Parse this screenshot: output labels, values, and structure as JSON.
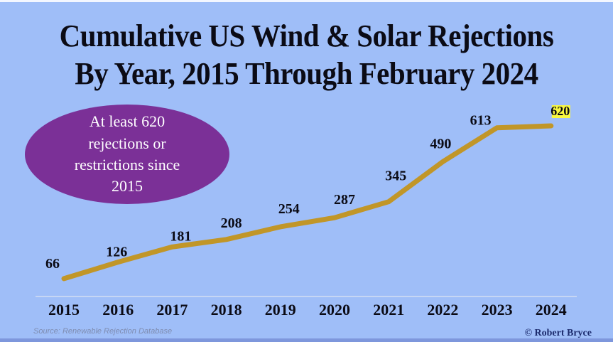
{
  "page": {
    "background_color": "#9fbef8",
    "top_strip_color": "#f3f7ff",
    "bottom_strip_color": "#7e97dc"
  },
  "title": {
    "line1": "Cumulative US Wind & Solar Rejections",
    "line2": "By Year, 2015 Through February 2024",
    "color": "#0b0b15"
  },
  "callout": {
    "lines": [
      "At least 620",
      "rejections or",
      "restrictions since",
      "2015"
    ],
    "bg_color": "#7b3097",
    "text_color": "#ffffff"
  },
  "chart_data": {
    "type": "line",
    "title": "Cumulative US Wind & Solar Rejections By Year, 2015 Through February 2024",
    "categories": [
      "2015",
      "2016",
      "2017",
      "2018",
      "2019",
      "2020",
      "2021",
      "2022",
      "2023",
      "2024"
    ],
    "series": [
      {
        "name": "Cumulative wind & solar rejections",
        "values": [
          66,
          126,
          181,
          208,
          254,
          287,
          345,
          490,
          613,
          620
        ]
      }
    ],
    "xlabel": "",
    "ylabel": "",
    "ylim": [
      0,
      660
    ],
    "grid": false,
    "legend": "none",
    "data_labels": true,
    "line_color": "#c19628",
    "label_color": "#0b0b15",
    "axis_line_color": "#d4def2",
    "highlight": {
      "category": "2024",
      "value": 620,
      "bg_color": "#f9f83f",
      "text_color": "#0b0b15"
    }
  },
  "footer": {
    "source": "Source: Renewable Rejection Database",
    "credit": "© Robert Bryce"
  }
}
